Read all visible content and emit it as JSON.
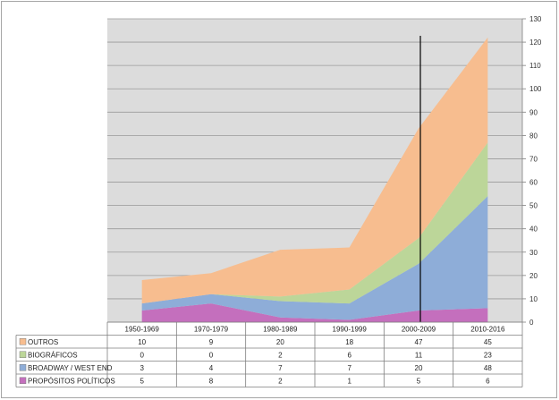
{
  "chart_data": {
    "type": "area",
    "stacked": true,
    "categories": [
      "1950-1969",
      "1970-1979",
      "1980-1989",
      "1990-1999",
      "2000-2009",
      "2010-2016"
    ],
    "series": [
      {
        "name": "PROPÓSITOS POLÍTICOS",
        "values": [
          5,
          8,
          2,
          1,
          5,
          6
        ],
        "color": "#c46fbd"
      },
      {
        "name": "BROADWAY / WEST END",
        "values": [
          3,
          4,
          7,
          7,
          20,
          48
        ],
        "color": "#8eadd8"
      },
      {
        "name": "BIOGRÁFICOS",
        "values": [
          0,
          0,
          2,
          6,
          11,
          23
        ],
        "color": "#bcd699"
      },
      {
        "name": "OUTROS",
        "values": [
          10,
          9,
          20,
          18,
          47,
          45
        ],
        "color": "#f7bd8f"
      }
    ],
    "table_order": [
      "OUTROS",
      "BIOGRÁFICOS",
      "BROADWAY / WEST END",
      "PROPÓSITOS POLÍTICOS"
    ],
    "ylim": [
      0,
      130
    ],
    "yticks": [
      0,
      10,
      20,
      30,
      40,
      50,
      60,
      70,
      80,
      90,
      100,
      110,
      120,
      130
    ],
    "y_axis_side": "right",
    "grid": true,
    "plot_background": "#dcdcdc",
    "vertical_marker_near": "2000-2009",
    "legend": "data-table-below"
  }
}
